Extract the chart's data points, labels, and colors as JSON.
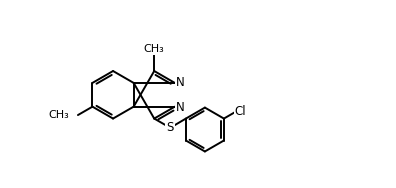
{
  "background_color": "#ffffff",
  "line_color": "#000000",
  "line_width": 1.4,
  "font_size": 8.5,
  "figsize": [
    3.96,
    1.88
  ],
  "dpi": 100,
  "xlim": [
    0,
    10
  ],
  "ylim": [
    0,
    4.75
  ],
  "bond_r": 0.78,
  "cb_r": 0.72
}
